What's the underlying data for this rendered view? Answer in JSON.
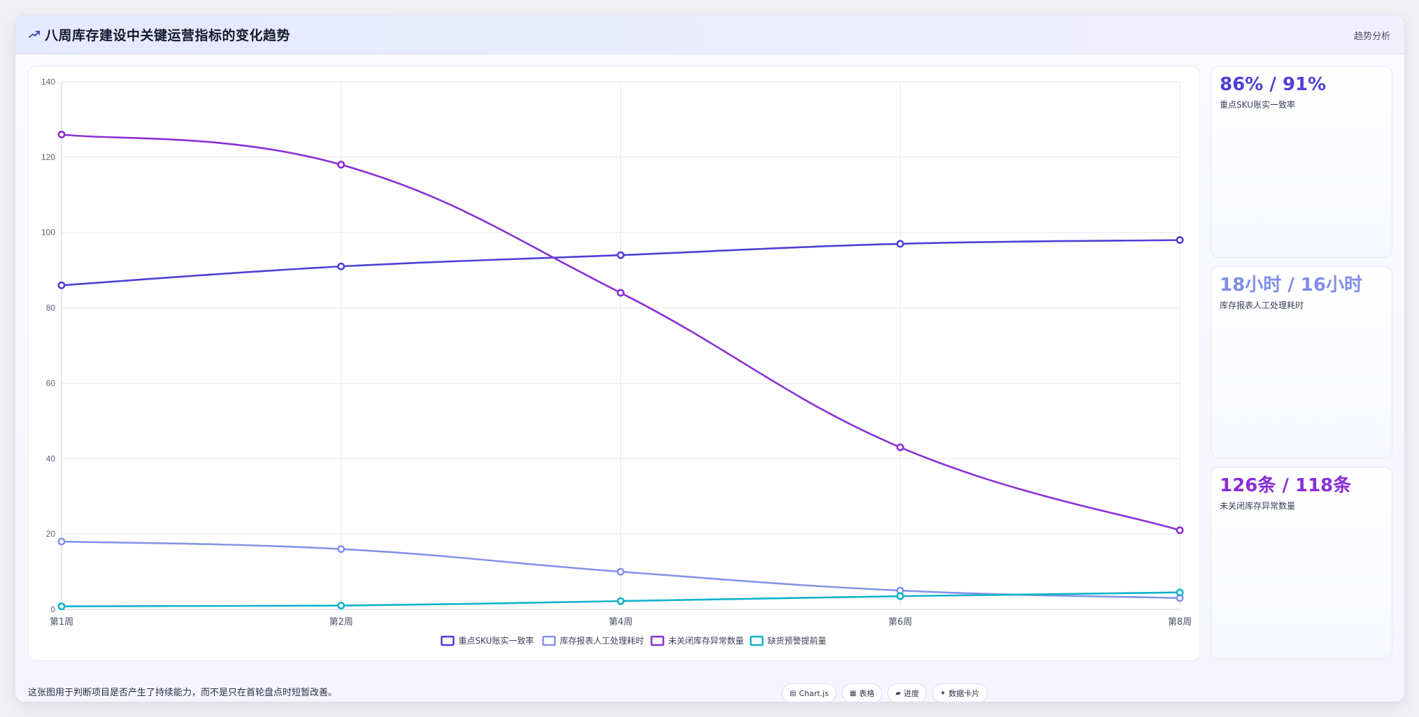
{
  "header": {
    "title": "八周库存建设中关键运营指标的变化趋势",
    "tag": "趋势分析",
    "title_icon": "trend-chart-icon"
  },
  "stats": [
    {
      "value": "86% / 91%",
      "label": "重点SKU账实一致率",
      "color": "#4f3fd6"
    },
    {
      "value": "18小时 / 16小时",
      "label": "库存报表人工处理耗时",
      "color": "#7f8ee8"
    },
    {
      "value": "126条 / 118条",
      "label": "未关闭库存异常数量",
      "color": "#8a2ed6"
    }
  ],
  "footer": {
    "note": "这张图用于判断项目是否产生了持续能力，而不是只在首轮盘点时短暂改善。",
    "chips": [
      {
        "icon": "chart-icon",
        "glyph": "▤",
        "label": "Chart.js"
      },
      {
        "icon": "table-icon",
        "glyph": "▦",
        "label": "表格"
      },
      {
        "icon": "progress-icon",
        "glyph": "▰",
        "label": "进度"
      },
      {
        "icon": "data-card-icon",
        "glyph": "✦",
        "label": "数据卡片"
      }
    ]
  },
  "chart_data": {
    "type": "line",
    "categories": [
      "第1周",
      "第2周",
      "第4周",
      "第6周",
      "第8周"
    ],
    "ylim": [
      0,
      140
    ],
    "yticks": [
      0,
      20,
      40,
      60,
      80,
      100,
      120,
      140
    ],
    "grid": true,
    "legend": "bottom",
    "series": [
      {
        "name": "重点SKU账实一致率",
        "color": "#4f3fd6",
        "values": [
          86,
          91,
          94,
          97,
          98
        ]
      },
      {
        "name": "库存报表人工处理耗时",
        "color": "#8494e8",
        "values": [
          18,
          16,
          10,
          5,
          3
        ]
      },
      {
        "name": "未关闭库存异常数量",
        "color": "#8a2ed6",
        "values": [
          126,
          118,
          84,
          43,
          21
        ]
      },
      {
        "name": "缺货预警提前量",
        "color": "#11b3c9",
        "values": [
          0.8,
          1,
          2.2,
          3.5,
          4.5
        ]
      }
    ]
  }
}
